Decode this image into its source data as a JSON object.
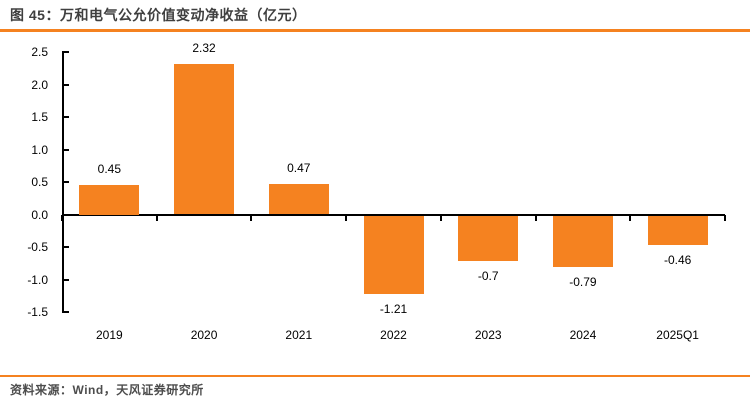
{
  "header": {
    "title": "图 45：万和电气公允价值变动净收益（亿元）"
  },
  "footer": {
    "source": "资料来源：Wind，天风证券研究所"
  },
  "colors": {
    "accent_orange": "#F58220",
    "title_gray": "#3F3F3F",
    "source_gray": "#4D4D4D",
    "axis_black": "#000000"
  },
  "chart_data": {
    "type": "bar",
    "title": "万和电气公允价值变动净收益（亿元）",
    "categories": [
      "2019",
      "2020",
      "2021",
      "2022",
      "2023",
      "2024",
      "2025Q1"
    ],
    "values": [
      0.45,
      2.32,
      0.47,
      -1.21,
      -0.7,
      -0.79,
      -0.46
    ],
    "data_labels": [
      "0.45",
      "2.32",
      "0.47",
      "-1.21",
      "-0.7",
      "-0.79",
      "-0.46"
    ],
    "xlabel": "",
    "ylabel": "",
    "ylim": [
      -1.5,
      2.5
    ],
    "ytick_step": 0.5,
    "yticks": [
      "2.5",
      "2.0",
      "1.5",
      "1.0",
      "0.5",
      "0.0",
      "-0.5",
      "-1.0",
      "-1.5"
    ],
    "bar_color": "#F58220",
    "grid": false,
    "legend": false
  }
}
